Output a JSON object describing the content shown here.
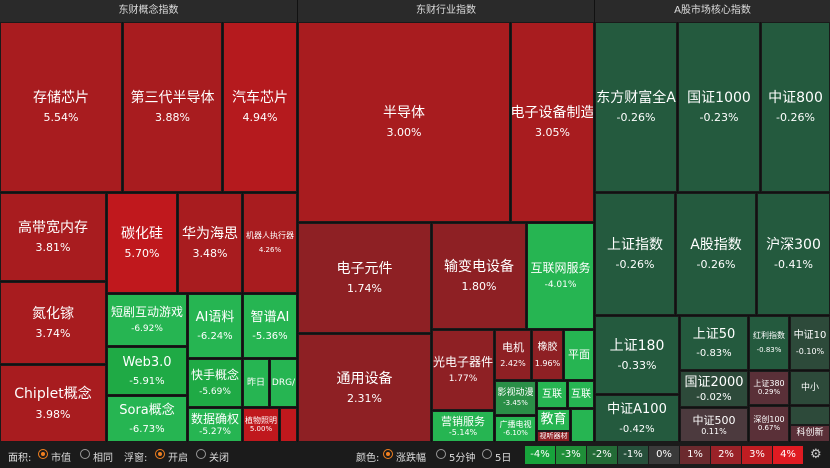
{
  "panels": [
    {
      "title": "东财概念指数",
      "tiles": [
        {
          "name": "存储芯片",
          "change": "5.54%"
        },
        {
          "name": "第三代半导体",
          "change": "3.88%"
        },
        {
          "name": "汽车芯片",
          "change": "4.94%"
        },
        {
          "name": "高带宽内存",
          "change": "3.81%"
        },
        {
          "name": "氮化镓",
          "change": "3.74%"
        },
        {
          "name": "Chiplet概念",
          "change": "3.98%"
        },
        {
          "name": "碳化硅",
          "change": "5.70%"
        },
        {
          "name": "华为海思",
          "change": "3.48%"
        },
        {
          "name": "机器人执行器",
          "change": "4.26%"
        },
        {
          "name": "短剧互动游戏",
          "change": "-6.92%"
        },
        {
          "name": "AI语料",
          "change": "-6.24%"
        },
        {
          "name": "智谱AI",
          "change": "-5.36%"
        },
        {
          "name": "Web3.0",
          "change": "-5.91%"
        },
        {
          "name": "Sora概念",
          "change": "-6.73%"
        },
        {
          "name": "快手概念",
          "change": "-5.69%"
        },
        {
          "name": "昨日"
        },
        {
          "name": "DRG/"
        },
        {
          "name": "数据确权",
          "change": "-5.27%"
        },
        {
          "name": "植物照明",
          "change": "5.00%"
        }
      ]
    },
    {
      "title": "东财行业指数",
      "tiles": [
        {
          "name": "半导体",
          "change": "3.00%"
        },
        {
          "name": "电子设备制造",
          "change": "3.05%"
        },
        {
          "name": "电子元件",
          "change": "1.74%"
        },
        {
          "name": "通用设备",
          "change": "2.31%"
        },
        {
          "name": "输变电设备",
          "change": "1.80%"
        },
        {
          "name": "互联网服务",
          "change": "-4.01%"
        },
        {
          "name": "光电子器件",
          "change": "1.77%"
        },
        {
          "name": "电机",
          "change": "2.42%"
        },
        {
          "name": "橡胶",
          "change": "1.96%"
        },
        {
          "name": "平面"
        },
        {
          "name": "影视动漫",
          "change": "-3.45%"
        },
        {
          "name": "互联"
        },
        {
          "name": "互联"
        },
        {
          "name": "营销服务",
          "change": "-5.14%"
        },
        {
          "name": "广播电视",
          "change": "-6.10%"
        },
        {
          "name": "教育"
        },
        {
          "name": "视听器材"
        }
      ]
    },
    {
      "title": "A股市场核心指数",
      "tiles": [
        {
          "name": "东方财富全A",
          "change": "-0.26%"
        },
        {
          "name": "国证1000",
          "change": "-0.23%"
        },
        {
          "name": "中证800",
          "change": "-0.26%"
        },
        {
          "name": "上证指数",
          "change": "-0.26%"
        },
        {
          "name": "A股指数",
          "change": "-0.26%"
        },
        {
          "name": "沪深300",
          "change": "-0.41%"
        },
        {
          "name": "上证180",
          "change": "-0.33%"
        },
        {
          "name": "中证A100",
          "change": "-0.42%"
        },
        {
          "name": "上证50",
          "change": "-0.83%"
        },
        {
          "name": "红利指数",
          "change": "-0.83%"
        },
        {
          "name": "中证10",
          "change": "-0.10%"
        },
        {
          "name": "国证2000",
          "change": "-0.02%"
        },
        {
          "name": "中证500",
          "change": "0.11%"
        },
        {
          "name": "上证380",
          "change": "0.29%"
        },
        {
          "name": "中小"
        },
        {
          "name": "深创100",
          "change": "0.67%"
        },
        {
          "name": "科创新"
        }
      ]
    }
  ],
  "toolbar": {
    "area_label": "面积:",
    "area_options": [
      "市值",
      "相同"
    ],
    "float_label": "浮窗:",
    "float_options": [
      "开启",
      "关闭"
    ],
    "color_label": "颜色:",
    "color_options": [
      "涨跌幅",
      "5分钟",
      "5日"
    ],
    "legend": [
      "-4%",
      "-3%",
      "-2%",
      "-1%",
      "0%",
      "1%",
      "2%",
      "3%",
      "4%"
    ]
  }
}
